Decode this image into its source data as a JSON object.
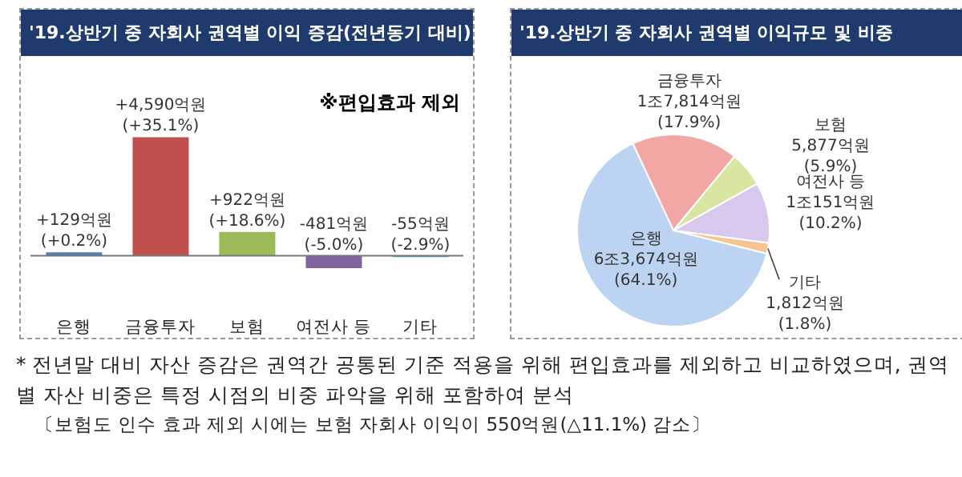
{
  "chart_data": [
    {
      "type": "bar",
      "title": "'19.상반기 중 자회사 권역별 이익 증감(전년동기 대비)",
      "categories": [
        "은행",
        "금융투자",
        "보험",
        "여전사 등",
        "기타"
      ],
      "values": [
        129,
        4590,
        922,
        -481,
        -55
      ],
      "colors": [
        "#4f81bd",
        "#c0504d",
        "#9bbb59",
        "#8064a2",
        "#4bacc6"
      ],
      "value_labels": [
        "+129억원\n(+0.2%)",
        "+4,590억원\n(+35.1%)",
        "+922억원\n(+18.6%)",
        "-481억원\n(-5.0%)",
        "-55억원\n(-2.9%)"
      ],
      "annotations": [
        "※편입효과 제외",
        "* 전년말 대비 자산 증감은 권역간 공통된 기준 적용을 위해 편입효과를 제외하고 비교하였으며, 권역별 자산 비중은 특정 시점의 비중 파악을 위해 포함하여 분석",
        "〔보험도 인수 효과 제외 시에는 보험 자회사 이익이 550억원(△11.1%) 감소〕"
      ]
    },
    {
      "type": "pie",
      "title": "'19.상반기 중 자회사 권역별 이익규모 및 비중",
      "categories": [
        "금융투자",
        "보험",
        "여전사 등",
        "기타",
        "은행"
      ],
      "values": [
        17.9,
        5.9,
        10.2,
        1.8,
        64.1
      ],
      "colors": [
        "#f2a7a5",
        "#d8e6a2",
        "#d8c8ee",
        "#f6c48f",
        "#bcd3f1"
      ],
      "value_labels": [
        "1조7,814억원\n(17.9%)",
        "5,877억원\n(5.9%)",
        "1조151억원\n(10.2%)",
        "1,812억원\n(1.8%)",
        "6조3,674억원\n(64.1%)"
      ]
    }
  ]
}
